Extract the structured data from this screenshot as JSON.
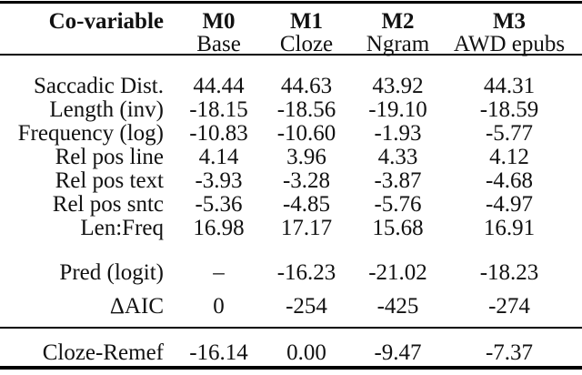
{
  "page": {
    "background_color": "#ffffff",
    "text_color": "#111111",
    "rule_color": "#000000"
  },
  "table": {
    "header": {
      "covariable_label": "Co-variable",
      "models": [
        {
          "id": "M0",
          "name": "Base"
        },
        {
          "id": "M1",
          "name": "Cloze"
        },
        {
          "id": "M2",
          "name": "Ngram"
        },
        {
          "id": "M3",
          "name": "AWD epubs"
        }
      ]
    },
    "sections": [
      {
        "rows": [
          {
            "label": "Saccadic Dist.",
            "values": [
              "44.44",
              "44.63",
              "43.92",
              "44.31"
            ]
          },
          {
            "label": "Length (inv)",
            "values": [
              "-18.15",
              "-18.56",
              "-19.10",
              "-18.59"
            ]
          },
          {
            "label": "Frequency (log)",
            "values": [
              "-10.83",
              "-10.60",
              "-1.93",
              "-5.77"
            ]
          },
          {
            "label": "Rel pos line",
            "values": [
              "4.14",
              "3.96",
              "4.33",
              "4.12"
            ]
          },
          {
            "label": "Rel pos text",
            "values": [
              "-3.93",
              "-3.28",
              "-3.87",
              "-4.68"
            ]
          },
          {
            "label": "Rel pos sntc",
            "values": [
              "-5.36",
              "-4.85",
              "-5.76",
              "-4.97"
            ]
          },
          {
            "label": "Len:Freq",
            "values": [
              "16.98",
              "17.17",
              "15.68",
              "16.91"
            ]
          }
        ]
      },
      {
        "rows": [
          {
            "label": "Pred (logit)",
            "values": [
              "–",
              "-16.23",
              "-21.02",
              "-18.23"
            ]
          }
        ]
      },
      {
        "rows": [
          {
            "label": "ΔAIC",
            "values": [
              "0",
              "-254",
              "-425",
              "-274"
            ]
          }
        ]
      },
      {
        "rows": [
          {
            "label": "Cloze-Remef",
            "values": [
              "-16.14",
              "0.00",
              "-9.47",
              "-7.37"
            ]
          }
        ]
      }
    ]
  }
}
